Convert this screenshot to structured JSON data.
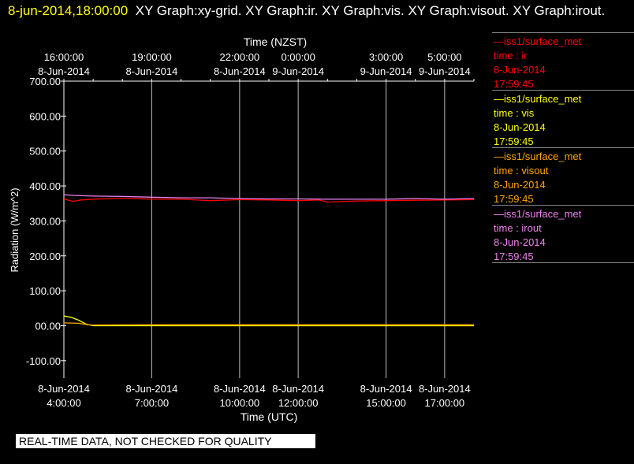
{
  "header": {
    "timestamp": "8-jun-2014,18:00:00",
    "title": "XY Graph:xy-grid.  XY Graph:ir.  XY Graph:vis.  XY Graph:visout.  XY Graph:irout."
  },
  "notice": "REAL-TIME DATA, NOT CHECKED FOR QUALITY",
  "legend": [
    {
      "source": "—iss1/surface_met",
      "field": "time : ir",
      "date": "8-Jun-2014",
      "time": "17:59:45",
      "color": "#ff0000"
    },
    {
      "source": "—iss1/surface_met",
      "field": "time : vis",
      "date": "8-Jun-2014",
      "time": "17:59:45",
      "color": "#ffff00"
    },
    {
      "source": "—iss1/surface_met",
      "field": "time : visout",
      "date": "8-Jun-2014",
      "time": "17:59:45",
      "color": "#ffa500"
    },
    {
      "source": "—iss1/surface_met",
      "field": "time : irout",
      "date": "8-Jun-2014",
      "time": "17:59:45",
      "color": "#ee82ee"
    }
  ],
  "chart_data": {
    "type": "line",
    "xlabel": "Time (UTC)",
    "x2label": "Time (NZST)",
    "ylabel": "Radiation (W/m^2)",
    "xlim_utc_hours": [
      4,
      18
    ],
    "ylim": [
      -150,
      700
    ],
    "yticks": [
      "700.00",
      "600.00",
      "500.00",
      "400.00",
      "300.00",
      "200.00",
      "100.00",
      "00.00",
      "-100.00"
    ],
    "ytick_values": [
      700,
      600,
      500,
      400,
      300,
      200,
      100,
      0,
      -100
    ],
    "xticks_bottom": [
      {
        "hour": 4,
        "date": "8-Jun-2014",
        "time": "4:00:00"
      },
      {
        "hour": 7,
        "date": "8-Jun-2014",
        "time": "7:00:00"
      },
      {
        "hour": 10,
        "date": "8-Jun-2014",
        "time": "10:00:00"
      },
      {
        "hour": 12,
        "date": "8-Jun-2014",
        "time": "12:00:00"
      },
      {
        "hour": 15,
        "date": "8-Jun-2014",
        "time": "15:00:00"
      },
      {
        "hour": 17,
        "date": "8-Jun-2014",
        "time": "17:00:00"
      }
    ],
    "xticks_top": [
      {
        "hour": 4,
        "time": "16:00:00",
        "date": "8-Jun-2014"
      },
      {
        "hour": 7,
        "time": "19:00:00",
        "date": "8-Jun-2014"
      },
      {
        "hour": 10,
        "time": "22:00:00",
        "date": "8-Jun-2014"
      },
      {
        "hour": 12,
        "time": "0:00:00",
        "date": "9-Jun-2014"
      },
      {
        "hour": 15,
        "time": "3:00:00",
        "date": "9-Jun-2014"
      },
      {
        "hour": 17,
        "time": "5:00:00",
        "date": "9-Jun-2014"
      }
    ],
    "grid": "vertical at labeled ticks",
    "series": [
      {
        "name": "time : ir",
        "color": "#ff0000",
        "x": [
          4,
          4.3,
          4.6,
          5,
          6,
          7,
          8,
          9,
          10,
          11,
          12,
          12.7,
          13,
          14,
          15,
          16,
          17,
          18
        ],
        "y": [
          363,
          356,
          360,
          362,
          365,
          362,
          362,
          358,
          361,
          360,
          358,
          360,
          354,
          357,
          358,
          359,
          360,
          361
        ]
      },
      {
        "name": "time : vis",
        "color": "#ffff00",
        "x": [
          4,
          4.25,
          4.5,
          4.75,
          5,
          6,
          8,
          10,
          12,
          14,
          16,
          18
        ],
        "y": [
          28,
          24,
          16,
          5,
          0,
          0,
          0,
          0,
          0,
          0,
          0,
          0
        ]
      },
      {
        "name": "time : visout",
        "color": "#ffa500",
        "x": [
          4,
          4.5,
          4.8,
          5,
          8,
          12,
          16,
          18
        ],
        "y": [
          8,
          7,
          3,
          2,
          3,
          3,
          3,
          3
        ]
      },
      {
        "name": "time : irout",
        "color": "#ee82ee",
        "x": [
          4,
          4.3,
          5,
          6,
          7,
          8,
          9,
          10,
          11,
          12,
          13,
          14,
          15,
          16,
          17,
          18
        ],
        "y": [
          375,
          373,
          371,
          370,
          368,
          366,
          366,
          364,
          363,
          363,
          362,
          362,
          362,
          364,
          362,
          364
        ]
      }
    ]
  }
}
